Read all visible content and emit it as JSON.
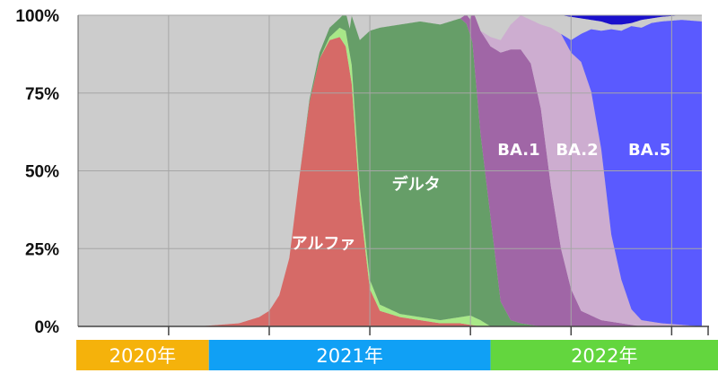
{
  "chart_data": {
    "type": "area",
    "stacked": "percent",
    "yticks": [
      "100%",
      "75%",
      "50%",
      "25%",
      "0%"
    ],
    "ylim": [
      0,
      100
    ],
    "grid": true,
    "x_time_units": "month index from 2020-01",
    "xlim": [
      0,
      31
    ],
    "xgrid_at": [
      4.5,
      9.5,
      14.5,
      19.5,
      24.5,
      29.5
    ],
    "series_order": [
      "other",
      "alpha",
      "alpha_edge",
      "delta",
      "ba1",
      "ba2",
      "ba5",
      "top"
    ],
    "series": [
      {
        "key": "other",
        "color": "#cccccc"
      },
      {
        "key": "alpha",
        "name": "アルファ",
        "color": "#d66a67",
        "points": [
          [
            0,
            0
          ],
          [
            4,
            0
          ],
          [
            6,
            0
          ],
          [
            7,
            0.5
          ],
          [
            8,
            1
          ],
          [
            9,
            3
          ],
          [
            9.5,
            5
          ],
          [
            10,
            10
          ],
          [
            10.5,
            22
          ],
          [
            11,
            48
          ],
          [
            11.5,
            72
          ],
          [
            12,
            86
          ],
          [
            12.5,
            92
          ],
          [
            13,
            93
          ],
          [
            13.3,
            90
          ],
          [
            13.6,
            78
          ],
          [
            14,
            40
          ],
          [
            14.5,
            12
          ],
          [
            15,
            5
          ],
          [
            16,
            3
          ],
          [
            17,
            2
          ],
          [
            18,
            1
          ],
          [
            19,
            1
          ],
          [
            20,
            0
          ],
          [
            31,
            0
          ]
        ]
      },
      {
        "key": "alpha_edge",
        "color": "#a8e888",
        "points": [
          [
            0,
            0
          ],
          [
            12,
            0
          ],
          [
            12.5,
            1
          ],
          [
            13,
            3
          ],
          [
            13.3,
            5
          ],
          [
            13.6,
            6
          ],
          [
            14,
            5
          ],
          [
            14.5,
            3
          ],
          [
            15,
            2
          ],
          [
            16,
            1
          ],
          [
            18,
            1
          ],
          [
            19,
            2
          ],
          [
            19.5,
            3
          ],
          [
            20,
            2
          ],
          [
            20.5,
            0
          ],
          [
            31,
            0
          ]
        ]
      },
      {
        "key": "delta",
        "name": "デルタ",
        "color": "#669e68",
        "points": [
          [
            0,
            0
          ],
          [
            11,
            0
          ],
          [
            11.5,
            1
          ],
          [
            12,
            2
          ],
          [
            12.5,
            3
          ],
          [
            13,
            3
          ],
          [
            13.5,
            8
          ],
          [
            14,
            47
          ],
          [
            14.5,
            80
          ],
          [
            15,
            89
          ],
          [
            16,
            93
          ],
          [
            17,
            95
          ],
          [
            18,
            95
          ],
          [
            19,
            96
          ],
          [
            19.3,
            94
          ],
          [
            19.6,
            88
          ],
          [
            20,
            60
          ],
          [
            20.5,
            35
          ],
          [
            21,
            8
          ],
          [
            21.5,
            2
          ],
          [
            22,
            1
          ],
          [
            23,
            0
          ],
          [
            31,
            0
          ]
        ]
      },
      {
        "key": "ba1",
        "name": "BA.1",
        "color": "#a066a6",
        "points": [
          [
            0,
            0
          ],
          [
            19,
            0
          ],
          [
            19.5,
            5
          ],
          [
            20,
            33
          ],
          [
            20.5,
            55
          ],
          [
            21,
            80
          ],
          [
            21.5,
            87
          ],
          [
            22,
            88
          ],
          [
            22.5,
            84
          ],
          [
            23,
            70
          ],
          [
            23.5,
            45
          ],
          [
            24,
            25
          ],
          [
            24.5,
            12
          ],
          [
            25,
            5
          ],
          [
            26,
            2
          ],
          [
            27,
            1
          ],
          [
            28,
            0
          ],
          [
            31,
            0
          ]
        ]
      },
      {
        "key": "ba2",
        "name": "BA.2",
        "color": "#cdadd0",
        "points": [
          [
            0,
            0
          ],
          [
            20,
            0
          ],
          [
            20.5,
            3
          ],
          [
            21,
            4
          ],
          [
            21.5,
            8
          ],
          [
            22,
            11
          ],
          [
            22.5,
            14
          ],
          [
            23,
            27
          ],
          [
            23.5,
            51
          ],
          [
            24,
            69
          ],
          [
            24.5,
            76
          ],
          [
            25,
            80
          ],
          [
            25.5,
            72
          ],
          [
            26,
            55
          ],
          [
            26.5,
            28
          ],
          [
            27,
            14
          ],
          [
            27.5,
            5
          ],
          [
            28,
            2
          ],
          [
            29,
            1
          ],
          [
            31,
            0
          ]
        ]
      },
      {
        "key": "ba5",
        "name": "BA.5",
        "color": "#5a5aff",
        "points": [
          [
            0,
            0
          ],
          [
            24,
            0
          ],
          [
            24.5,
            4
          ],
          [
            25,
            9
          ],
          [
            25.5,
            20
          ],
          [
            26,
            38
          ],
          [
            26.5,
            66
          ],
          [
            27,
            80
          ],
          [
            27.5,
            91
          ],
          [
            28,
            94
          ],
          [
            28.5,
            96
          ],
          [
            29,
            97
          ],
          [
            30,
            98
          ],
          [
            31,
            98
          ]
        ]
      },
      {
        "key": "top",
        "color": "#1a10cc",
        "points": [
          [
            0,
            0
          ],
          [
            24,
            0
          ],
          [
            24.5,
            0.5
          ],
          [
            25,
            1
          ],
          [
            26,
            2
          ],
          [
            26.5,
            3
          ],
          [
            27,
            3
          ],
          [
            27.5,
            2.5
          ],
          [
            28,
            1.5
          ],
          [
            29,
            0.5
          ],
          [
            30,
            0
          ],
          [
            31,
            0
          ]
        ]
      }
    ],
    "labels": [
      {
        "series": "alpha",
        "text": "アルファ",
        "at_x": 12.2,
        "at_y": 25
      },
      {
        "series": "delta",
        "text": "デルタ",
        "at_x": 16.8,
        "at_y": 44
      },
      {
        "series": "ba1",
        "text": "BA.1",
        "at_x": 21.9,
        "at_y": 55
      },
      {
        "series": "ba2",
        "text": "BA.2",
        "at_x": 24.8,
        "at_y": 55
      },
      {
        "series": "ba5",
        "text": "BA.5",
        "at_x": 28.4,
        "at_y": 55
      }
    ],
    "year_bands": [
      {
        "label": "2020年",
        "from": 0,
        "to": 6.5,
        "color": "#f5b20b"
      },
      {
        "label": "2021年",
        "from": 6.5,
        "to": 20.5,
        "color": "#10a0f5"
      },
      {
        "label": "2022年",
        "from": 20.5,
        "to": 31,
        "color": "#63d63e"
      }
    ]
  }
}
